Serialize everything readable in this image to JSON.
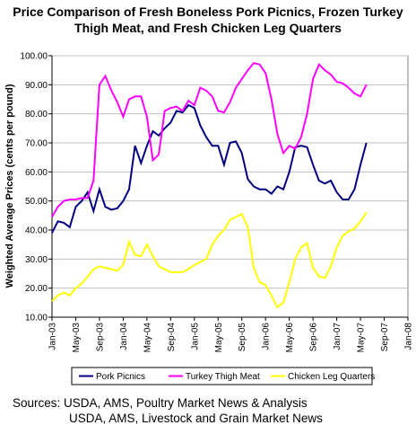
{
  "chart_data": {
    "type": "line",
    "title": "Price Comparison of Fresh Boneless Pork Picnics, Frozen Turkey Thigh Meat, and Fresh Chicken Leg Quarters",
    "y_label": "Weighted Average Prices (cents per pound)",
    "categories": [
      "Jan-03",
      null,
      null,
      null,
      "May-03",
      null,
      null,
      null,
      "Sep-03",
      null,
      null,
      null,
      "Jan-04",
      null,
      null,
      null,
      "May-04",
      null,
      null,
      null,
      "Sep-04",
      null,
      null,
      null,
      "Jan-05",
      null,
      null,
      null,
      "May-05",
      null,
      null,
      null,
      "Sep-05",
      null,
      null,
      null,
      "Jan-06",
      null,
      null,
      null,
      "May-06",
      null,
      null,
      null,
      "Sep-06",
      null,
      null,
      null,
      "Jan-07",
      null,
      null,
      null,
      "May-07",
      null,
      null,
      null,
      "Sep-07",
      null,
      null,
      null,
      "Jan-08"
    ],
    "series": [
      {
        "name": "Pork Picnics",
        "color": "#000080",
        "values": [
          39,
          43,
          42.5,
          41,
          48,
          50,
          53,
          46.5,
          54,
          48,
          47,
          47.5,
          50,
          54,
          69,
          63,
          69,
          74,
          72.5,
          75,
          77,
          81,
          80.5,
          83,
          82,
          76,
          72,
          69,
          69,
          62.5,
          70,
          70.5,
          66.5,
          57.5,
          55,
          54,
          54,
          52.5,
          55,
          54,
          60,
          68.5,
          69,
          68.5,
          62.5,
          57,
          56,
          57,
          53,
          50.5,
          50.5,
          54,
          62.5,
          70,
          null,
          null,
          null,
          null,
          null,
          null,
          null
        ]
      },
      {
        "name": "Turkey Thigh Meat",
        "color": "#ff00ff",
        "values": [
          44.5,
          48,
          50,
          50.5,
          50.5,
          51,
          51,
          57,
          90,
          93,
          88,
          84,
          79,
          85,
          86,
          86,
          79,
          64,
          66,
          81,
          82,
          82.5,
          81,
          84.5,
          83,
          89,
          88,
          86,
          81,
          80.5,
          84,
          89,
          92,
          95,
          97.5,
          97,
          94,
          85,
          73,
          66.5,
          69,
          68,
          72,
          80,
          92,
          97,
          95,
          93.5,
          91,
          90.5,
          89,
          87,
          86,
          90,
          null,
          null,
          null,
          null,
          null,
          null,
          null
        ]
      },
      {
        "name": "Chicken Leg Quarters",
        "color": "#ffff00",
        "values": [
          15.5,
          17.5,
          18.5,
          17.5,
          20,
          21.5,
          24,
          26.5,
          27.5,
          27,
          26.5,
          26,
          28,
          36,
          31.5,
          31,
          35,
          31,
          27.5,
          26.5,
          25.5,
          25.5,
          25.5,
          26.5,
          28,
          29,
          30,
          35,
          38,
          40,
          43.5,
          44.5,
          45.5,
          41,
          27,
          22,
          21,
          17.5,
          13.5,
          15,
          22,
          30,
          34,
          35.5,
          27,
          24,
          23.5,
          27.5,
          34,
          38,
          39.5,
          40.5,
          43,
          46,
          null,
          null,
          null,
          null,
          null,
          null,
          null
        ]
      }
    ],
    "ylim": [
      10,
      100
    ],
    "yticks": [
      {
        "value": 10,
        "label": "10.00"
      },
      {
        "value": 20,
        "label": "20.00"
      },
      {
        "value": 30,
        "label": "30.00"
      },
      {
        "value": 40,
        "label": "40.00"
      },
      {
        "value": 50,
        "label": "50.00"
      },
      {
        "value": 60,
        "label": "60.00"
      },
      {
        "value": 70,
        "label": "70.00"
      },
      {
        "value": 80,
        "label": "80.00"
      },
      {
        "value": 90,
        "label": "90.00"
      },
      {
        "value": 100,
        "label": "100.00"
      }
    ],
    "grid": true,
    "legend": "bottom",
    "sources": [
      "Sources:  USDA, AMS, Poultry Market News & Analysis",
      "USDA, AMS, Livestock and Grain Market News"
    ]
  }
}
